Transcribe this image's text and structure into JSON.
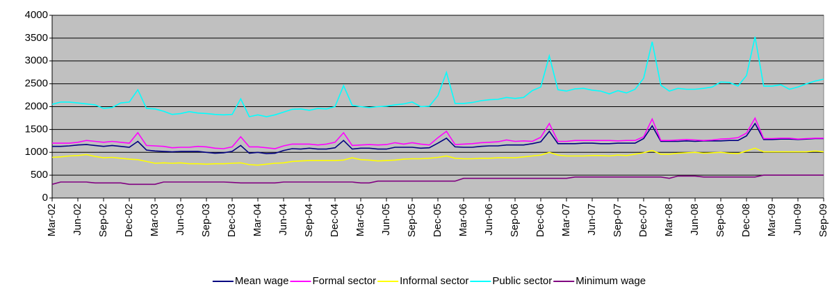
{
  "chart_data": {
    "type": "line",
    "categories": [
      "Mar-02",
      null,
      null,
      "Jun-02",
      null,
      null,
      "Sep-02",
      null,
      null,
      "Dec-02",
      null,
      null,
      "Mar-03",
      null,
      null,
      "Jun-03",
      null,
      null,
      "Sep-03",
      null,
      null,
      "Dec-03",
      null,
      null,
      "Mar-04",
      null,
      null,
      "Jun-04",
      null,
      null,
      "Sep-04",
      null,
      null,
      "Dec-04",
      null,
      null,
      "Mar-05",
      null,
      null,
      "Jun-05",
      null,
      null,
      "Sep-05",
      null,
      null,
      "Dec-05",
      null,
      null,
      "Mar-06",
      null,
      null,
      "Jun-06",
      null,
      null,
      "Sep-06",
      null,
      null,
      "Dec-06",
      null,
      null,
      "Mar-07",
      null,
      null,
      "Jun-07",
      null,
      null,
      "Sep-07",
      null,
      null,
      "Dec-07",
      null,
      null,
      "Mar-08",
      null,
      null,
      "Jun-08",
      null,
      null,
      "Sep-08",
      null,
      null,
      "Dec-08",
      null,
      null,
      "Mar-09",
      null,
      null,
      "Jun-09",
      null,
      null,
      "Sep-09"
    ],
    "series": [
      {
        "name": "Mean wage",
        "color": "#000080",
        "values": [
          1130,
          1130,
          1140,
          1160,
          1170,
          1150,
          1130,
          1150,
          1130,
          1110,
          1240,
          1050,
          1030,
          1020,
          1010,
          1020,
          1020,
          1020,
          1000,
          980,
          990,
          1020,
          1150,
          980,
          1000,
          970,
          980,
          1040,
          1080,
          1070,
          1090,
          1070,
          1070,
          1100,
          1260,
          1070,
          1090,
          1090,
          1070,
          1070,
          1110,
          1110,
          1110,
          1090,
          1100,
          1200,
          1310,
          1120,
          1110,
          1110,
          1130,
          1140,
          1140,
          1160,
          1160,
          1160,
          1190,
          1230,
          1460,
          1190,
          1190,
          1190,
          1200,
          1200,
          1190,
          1190,
          1200,
          1200,
          1200,
          1300,
          1580,
          1240,
          1240,
          1240,
          1250,
          1240,
          1250,
          1250,
          1250,
          1260,
          1260,
          1360,
          1630,
          1280,
          1280,
          1290,
          1290,
          1280,
          1290,
          1300,
          1300
        ]
      },
      {
        "name": "Formal sector",
        "color": "#ff00ff",
        "values": [
          1200,
          1200,
          1200,
          1220,
          1260,
          1240,
          1220,
          1240,
          1220,
          1200,
          1430,
          1150,
          1140,
          1130,
          1100,
          1110,
          1110,
          1130,
          1120,
          1090,
          1080,
          1120,
          1340,
          1120,
          1120,
          1100,
          1080,
          1140,
          1180,
          1180,
          1180,
          1160,
          1180,
          1220,
          1430,
          1150,
          1160,
          1170,
          1160,
          1170,
          1210,
          1180,
          1210,
          1180,
          1160,
          1320,
          1460,
          1170,
          1180,
          1190,
          1210,
          1220,
          1230,
          1270,
          1240,
          1250,
          1240,
          1330,
          1630,
          1240,
          1240,
          1260,
          1260,
          1260,
          1260,
          1260,
          1250,
          1260,
          1260,
          1340,
          1730,
          1260,
          1260,
          1270,
          1280,
          1270,
          1260,
          1270,
          1290,
          1300,
          1320,
          1420,
          1750,
          1300,
          1300,
          1310,
          1310,
          1290,
          1300,
          1310,
          1310
        ]
      },
      {
        "name": "Informal sector",
        "color": "#ffff00",
        "values": [
          890,
          900,
          920,
          930,
          950,
          910,
          880,
          890,
          870,
          850,
          840,
          800,
          760,
          770,
          760,
          770,
          750,
          750,
          740,
          750,
          750,
          760,
          770,
          730,
          720,
          740,
          760,
          770,
          800,
          810,
          820,
          820,
          820,
          820,
          830,
          880,
          840,
          830,
          810,
          820,
          830,
          850,
          860,
          860,
          870,
          890,
          920,
          870,
          860,
          860,
          870,
          870,
          880,
          880,
          880,
          900,
          920,
          940,
          1000,
          940,
          920,
          920,
          920,
          930,
          930,
          920,
          940,
          930,
          960,
          990,
          1040,
          960,
          960,
          980,
          990,
          1000,
          980,
          990,
          1000,
          980,
          970,
          1030,
          1090,
          1010,
          1010,
          1010,
          1010,
          1010,
          1010,
          1030,
          1010
        ]
      },
      {
        "name": "Public sector",
        "color": "#00ffff",
        "values": [
          2050,
          2100,
          2100,
          2080,
          2060,
          2040,
          1960,
          1980,
          2080,
          2100,
          2370,
          1960,
          1950,
          1900,
          1830,
          1850,
          1890,
          1860,
          1850,
          1830,
          1820,
          1830,
          2170,
          1780,
          1820,
          1780,
          1820,
          1880,
          1940,
          1950,
          1920,
          1960,
          1950,
          2000,
          2460,
          2030,
          2000,
          1980,
          2000,
          2010,
          2040,
          2060,
          2100,
          2000,
          2010,
          2240,
          2750,
          2070,
          2070,
          2090,
          2130,
          2150,
          2160,
          2200,
          2180,
          2200,
          2350,
          2430,
          3110,
          2370,
          2340,
          2390,
          2400,
          2360,
          2340,
          2280,
          2350,
          2300,
          2380,
          2620,
          3420,
          2470,
          2340,
          2400,
          2380,
          2380,
          2400,
          2430,
          2540,
          2530,
          2450,
          2680,
          3530,
          2450,
          2450,
          2480,
          2380,
          2430,
          2500,
          2560,
          2600
        ]
      },
      {
        "name": "Minimum wage",
        "color": "#800080",
        "values": [
          300,
          350,
          350,
          350,
          350,
          330,
          330,
          330,
          330,
          300,
          300,
          300,
          300,
          350,
          350,
          350,
          350,
          350,
          350,
          350,
          350,
          340,
          330,
          330,
          330,
          330,
          330,
          350,
          350,
          350,
          350,
          350,
          350,
          350,
          350,
          350,
          330,
          330,
          370,
          370,
          370,
          370,
          370,
          370,
          370,
          370,
          370,
          370,
          430,
          430,
          430,
          430,
          430,
          430,
          430,
          430,
          430,
          430,
          430,
          430,
          430,
          460,
          460,
          460,
          460,
          460,
          460,
          460,
          460,
          460,
          460,
          460,
          430,
          480,
          480,
          480,
          460,
          460,
          460,
          460,
          460,
          460,
          460,
          500,
          500,
          500,
          500,
          500,
          500,
          500,
          500
        ]
      }
    ],
    "ylim": [
      0,
      4000
    ],
    "yticks": [
      0,
      500,
      1000,
      1500,
      2000,
      2500,
      3000,
      3500,
      4000
    ],
    "grid": true,
    "legend": "bottom"
  }
}
